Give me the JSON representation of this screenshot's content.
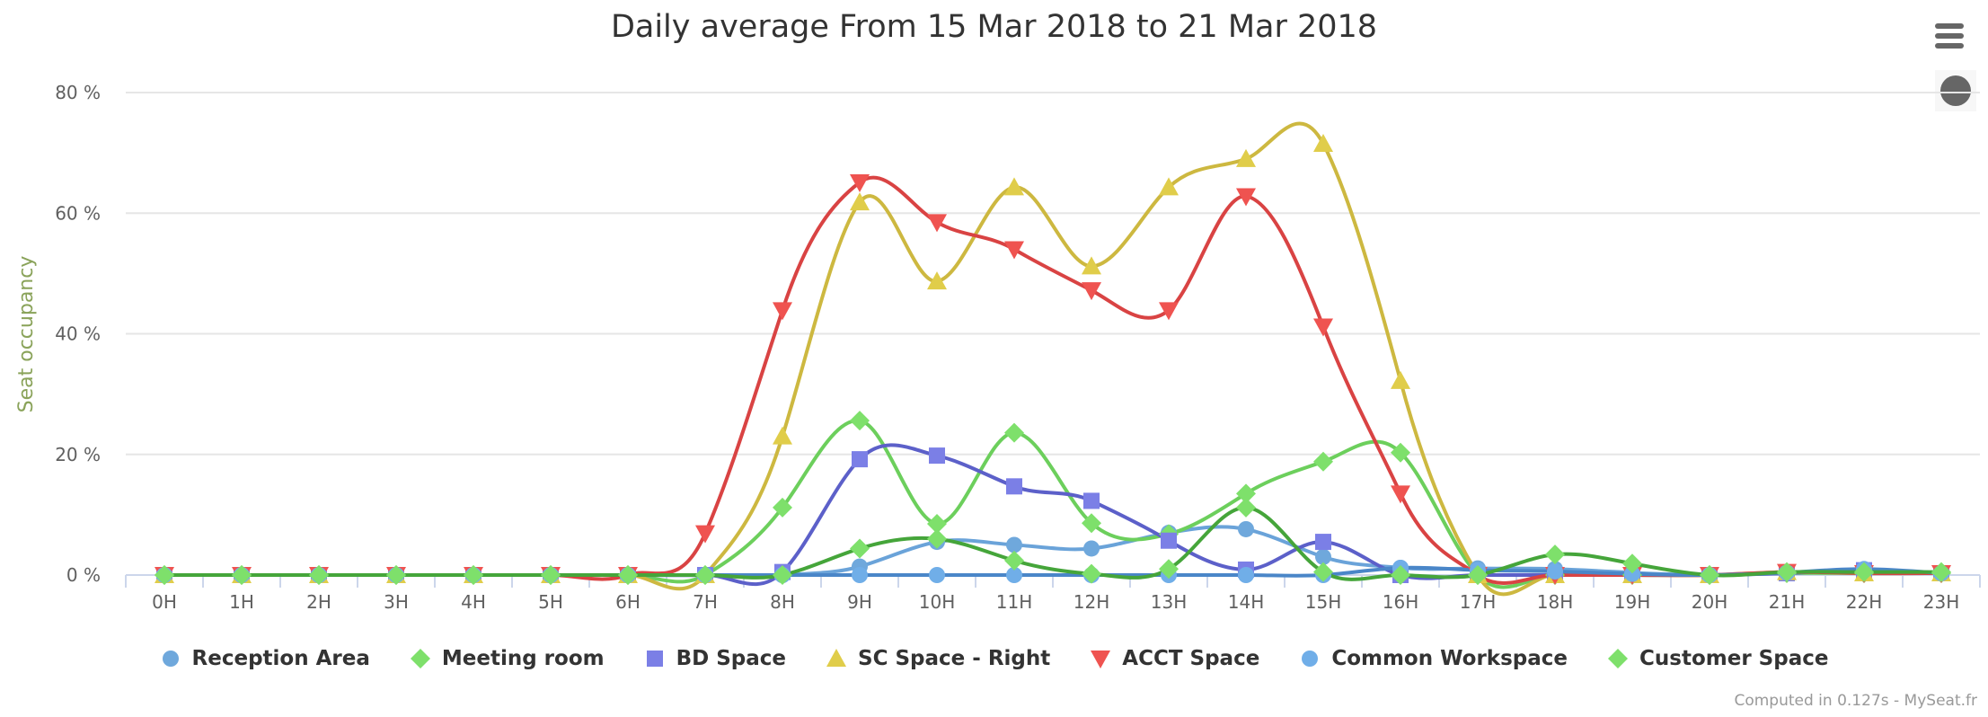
{
  "title": "Daily average From 15 Mar 2018 to 21 Mar 2018",
  "credits": "Computed in 0.127s - MySeat.fr",
  "menu_icon": "hamburger-menu-icon",
  "extra_icon": "circle-icon",
  "chart_data": {
    "type": "line",
    "title": "Daily average From 15 Mar 2018 to 21 Mar 2018",
    "xlabel": "",
    "ylabel": "Seat occupancy",
    "ylim": [
      0,
      80
    ],
    "yticks": [
      "0 %",
      "20 %",
      "40 %",
      "60 %",
      "80 %"
    ],
    "ytick_values": [
      0,
      20,
      40,
      60,
      80
    ],
    "grid": true,
    "legend_position": "bottom",
    "categories": [
      "0H",
      "1H",
      "2H",
      "3H",
      "4H",
      "5H",
      "6H",
      "7H",
      "8H",
      "9H",
      "10H",
      "11H",
      "12H",
      "13H",
      "14H",
      "15H",
      "16H",
      "17H",
      "18H",
      "19H",
      "20H",
      "21H",
      "22H",
      "23H"
    ],
    "series": [
      {
        "name": "Reception Area",
        "marker": "circle",
        "color": "#6fa8dc",
        "line_color": "#6aa3d9",
        "values": [
          0,
          0,
          0,
          0,
          0,
          0,
          0,
          0,
          0,
          1.4,
          5.5,
          5.0,
          4.4,
          7.0,
          7.6,
          3.0,
          1.2,
          1.1,
          1.0,
          0.4,
          0,
          0.3,
          0.5,
          0.3
        ]
      },
      {
        "name": "Meeting room",
        "marker": "diamond",
        "color": "#7ee06b",
        "line_color": "#6ccf5c",
        "values": [
          0,
          0,
          0,
          0,
          0,
          0,
          0,
          0,
          11.2,
          25.6,
          8.5,
          23.6,
          8.6,
          6.8,
          13.5,
          18.8,
          20.3,
          0,
          0,
          0,
          0,
          0.3,
          0.3,
          0.3
        ]
      },
      {
        "name": "BD Space",
        "marker": "square",
        "color": "#7b7fe6",
        "line_color": "#5c60c9",
        "values": [
          0,
          0,
          0,
          0,
          0,
          0,
          0,
          0,
          0.5,
          19.2,
          19.8,
          14.7,
          12.3,
          5.7,
          0.9,
          5.5,
          0,
          0,
          0,
          0,
          0,
          0.3,
          0.8,
          0.3
        ]
      },
      {
        "name": "SC Space - Right",
        "marker": "triangle",
        "color": "#e0cd4a",
        "line_color": "#cdb840",
        "values": [
          0,
          0,
          0,
          0,
          0,
          0,
          0,
          0,
          23.0,
          61.8,
          48.7,
          64.3,
          51.2,
          64.3,
          69.0,
          71.5,
          32.2,
          0,
          0,
          0,
          0,
          0.5,
          0.3,
          0.3
        ]
      },
      {
        "name": "ACCT Space",
        "marker": "triangle-down",
        "color": "#ef5350",
        "line_color": "#d94343",
        "values": [
          0,
          0,
          0,
          0,
          0,
          0,
          0,
          6.9,
          43.9,
          65.1,
          58.5,
          54.0,
          47.2,
          43.9,
          62.8,
          41.2,
          13.5,
          0,
          0,
          0,
          0,
          0.5,
          0.3,
          0.3
        ]
      },
      {
        "name": "Common Workspace",
        "marker": "circle",
        "color": "#70aee8",
        "line_color": "#4a86c8",
        "values": [
          0,
          0,
          0,
          0,
          0,
          0,
          0,
          0,
          0,
          0,
          0,
          0,
          0,
          0,
          0,
          0,
          1.2,
          0.8,
          0.6,
          0.2,
          0,
          0.4,
          1.0,
          0.3
        ]
      },
      {
        "name": "Customer Space",
        "marker": "diamond",
        "color": "#7ee06b",
        "line_color": "#45a53a",
        "values": [
          0,
          0,
          0,
          0,
          0,
          0,
          0,
          0,
          0,
          4.4,
          6.0,
          2.4,
          0.2,
          1.0,
          11.2,
          0.5,
          0,
          0,
          3.4,
          1.9,
          0,
          0.5,
          0.5,
          0.5
        ]
      }
    ]
  }
}
